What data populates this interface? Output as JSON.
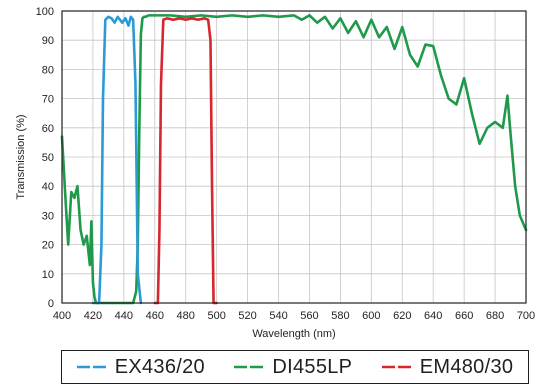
{
  "chart_data": {
    "type": "line",
    "xlabel": "Wavelength (nm)",
    "ylabel": "Transmission (%)",
    "xlim": [
      400,
      700
    ],
    "ylim": [
      0,
      100
    ],
    "xticks": [
      "400",
      "420",
      "440",
      "460",
      "480",
      "500",
      "520",
      "540",
      "560",
      "580",
      "600",
      "620",
      "640",
      "660",
      "680",
      "700"
    ],
    "yticks": [
      "0",
      "10",
      "20",
      "30",
      "40",
      "50",
      "60",
      "70",
      "80",
      "90",
      "100"
    ],
    "grid": true,
    "legend_position": "bottom",
    "series": [
      {
        "name": "EX436/20",
        "color": "#2b9bd7",
        "x": [
          420,
          424,
          425.5,
          426.5,
          428,
          430,
          432,
          434,
          436,
          437.5,
          439,
          441,
          443,
          444.5,
          446,
          447.5,
          449,
          451
        ],
        "y": [
          0,
          0,
          20,
          70,
          97,
          98,
          97.5,
          96,
          98,
          97,
          96,
          97.5,
          95,
          98,
          97,
          75,
          10,
          0
        ]
      },
      {
        "name": "DI455LP",
        "color": "#1f9a4a",
        "x": [
          400,
          402,
          404,
          406,
          408,
          410,
          412,
          414,
          416,
          418,
          419,
          420,
          421,
          422,
          423,
          424,
          426,
          430,
          440,
          446,
          448,
          449,
          450,
          451,
          452,
          453,
          454,
          456,
          460,
          470,
          480,
          490,
          500,
          510,
          520,
          530,
          540,
          550,
          555,
          560,
          565,
          570,
          575,
          580,
          585,
          590,
          595,
          600,
          605,
          610,
          615,
          620,
          625,
          630,
          635,
          640,
          645,
          650,
          655,
          660,
          665,
          670,
          675,
          680,
          685,
          688,
          690,
          693,
          696,
          700
        ],
        "y": [
          57,
          38,
          20,
          38,
          36,
          40,
          25,
          20,
          23,
          13,
          28,
          7,
          2,
          0,
          0,
          0,
          0,
          0,
          0,
          0,
          4,
          20,
          60,
          92,
          97.5,
          98,
          98,
          98.5,
          98.5,
          98.5,
          98,
          98.5,
          98,
          98.5,
          98,
          98.5,
          98,
          98.5,
          97,
          98.5,
          96,
          98,
          94,
          97.5,
          92.5,
          96.5,
          91,
          97,
          91,
          94.5,
          87,
          94.5,
          85,
          81,
          88.5,
          88,
          78,
          70,
          68,
          77,
          65,
          54.5,
          60,
          62,
          60,
          71,
          58,
          40,
          30,
          25
        ]
      },
      {
        "name": "EM480/30",
        "color": "#d7262e",
        "x": [
          460,
          462,
          463,
          464,
          465.5,
          468,
          472,
          476,
          480,
          484,
          488,
          492,
          494.5,
          496,
          497,
          498,
          500
        ],
        "y": [
          0,
          0,
          25,
          75,
          97,
          97.5,
          97,
          97.5,
          97,
          97.5,
          97,
          97.5,
          97,
          90,
          40,
          0,
          0
        ]
      }
    ]
  }
}
